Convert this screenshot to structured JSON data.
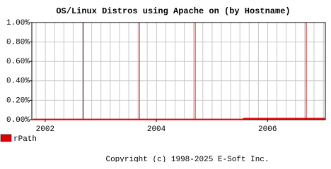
{
  "chart_data": {
    "type": "line",
    "title": "OS/Linux Distros using Apache on  (by Hostname)",
    "x": [
      2001.78,
      2005.55,
      2005.58,
      2007.03
    ],
    "series": [
      {
        "name": "rPath",
        "color": "#dd0000",
        "values": [
          0.003,
          0.003,
          0.012,
          0.012
        ]
      }
    ],
    "xlim": [
      2001.76,
      2007.04
    ],
    "xticks": [
      2002,
      2004,
      2006
    ],
    "ylim": [
      0,
      1
    ],
    "yticks": [
      {
        "value": 0,
        "label": "0.00%"
      },
      {
        "value": 0.2,
        "label": "0.20%"
      },
      {
        "value": 0.4,
        "label": "0.40%"
      },
      {
        "value": 0.6,
        "label": "0.60%"
      },
      {
        "value": 0.8,
        "label": "0.80%"
      },
      {
        "value": 1,
        "label": "1.00%"
      }
    ],
    "grid": true,
    "footer": "Copyright (c) 1998-2025 E-Soft Inc."
  }
}
